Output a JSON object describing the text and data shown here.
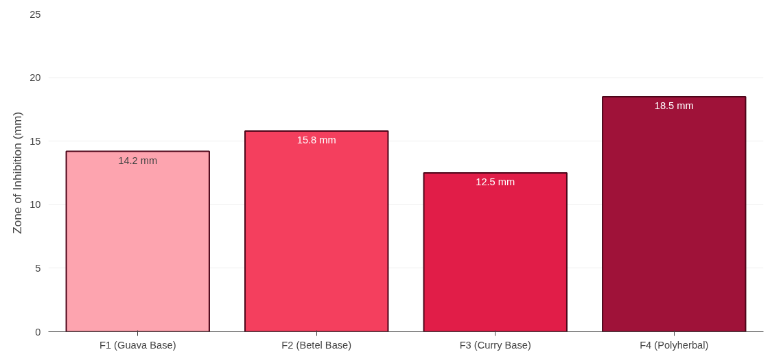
{
  "chart_data": {
    "type": "bar",
    "ylabel": "Zone of Inhibition (mm)",
    "categories": [
      "F1 (Guava Base)",
      "F2 (Betel Base)",
      "F3 (Curry Base)",
      "F4 (Polyherbal)"
    ],
    "values": [
      14.2,
      15.8,
      12.5,
      18.5
    ],
    "colors": [
      "#fda4af",
      "#f43f5e",
      "#e11d48",
      "#9f1239"
    ],
    "value_labels": [
      "14.2 mm",
      "15.8 mm",
      "12.5 mm",
      "18.5 mm"
    ],
    "ylim": [
      0,
      25
    ],
    "yticks": [
      0,
      5,
      10,
      15,
      20,
      25
    ],
    "grid": "y"
  }
}
